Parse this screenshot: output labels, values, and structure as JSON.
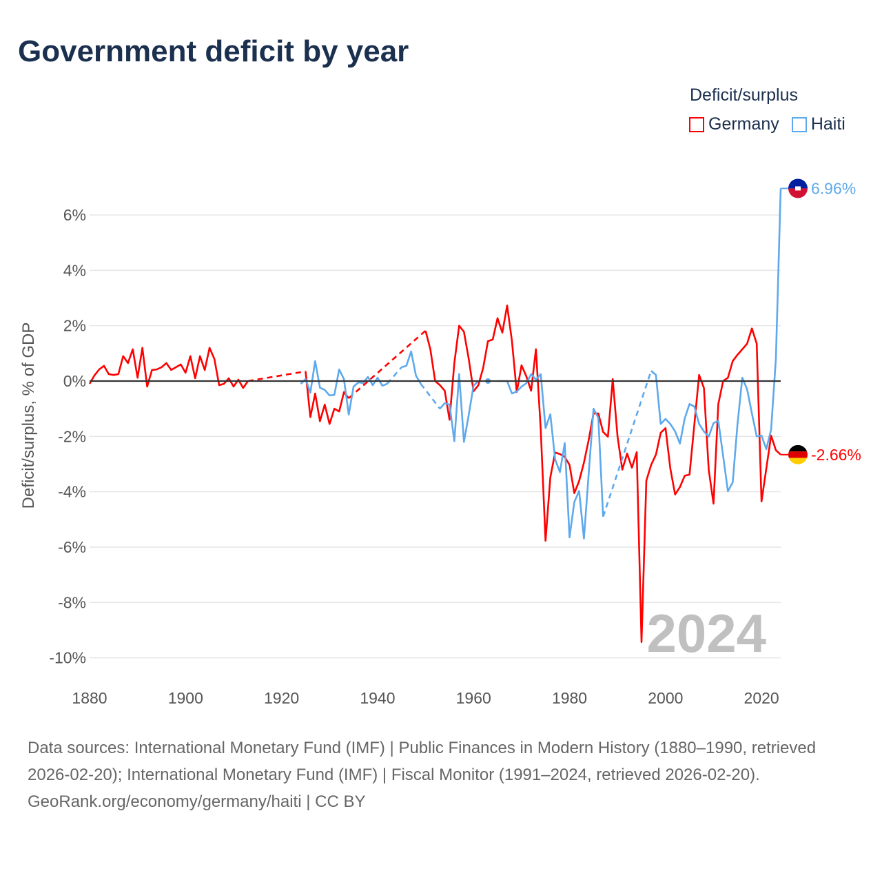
{
  "title": "Government deficit by year",
  "legend": {
    "title": "Deficit/surplus",
    "items": [
      {
        "label": "Germany",
        "color": "#ff0000"
      },
      {
        "label": "Haiti",
        "color": "#5ea9ec"
      }
    ]
  },
  "footer": {
    "sources": "Data sources: International Monetary Fund (IMF) | Public Finances in Modern History (1880–1990, retrieved 2026-02-20); International Monetary Fund (IMF) | Fiscal Monitor (1991–2024, retrieved 2026-02-20).",
    "credit": "GeoRank.org/economy/germany/haiti | CC BY"
  },
  "chart_data": {
    "type": "line",
    "title": "Government deficit by year",
    "xlabel": "",
    "ylabel": "Deficit/surplus, % of GDP",
    "xlim": [
      1880,
      2024
    ],
    "ylim": [
      -10,
      7
    ],
    "x_ticks": [
      1880,
      1900,
      1920,
      1940,
      1960,
      1980,
      2000,
      2020
    ],
    "y_ticks": [
      6,
      4,
      2,
      0,
      -2,
      -4,
      -6,
      -8,
      -10
    ],
    "y_tick_labels": [
      "6%",
      "4%",
      "2%",
      "0%",
      "-2%",
      "-4%",
      "-6%",
      "-8%",
      "-10%"
    ],
    "grid": true,
    "legend_position": "top-right",
    "current_year_label": "2024",
    "series": [
      {
        "name": "Germany",
        "color": "#ff0000",
        "end_label": "-2.66%",
        "dashed_gaps": [
          [
            1913,
            1925
          ],
          [
            1934,
            1950
          ]
        ],
        "points": [
          [
            1880,
            -0.1
          ],
          [
            1881,
            0.2
          ],
          [
            1882,
            0.42
          ],
          [
            1883,
            0.55
          ],
          [
            1884,
            0.25
          ],
          [
            1885,
            0.22
          ],
          [
            1886,
            0.25
          ],
          [
            1887,
            0.9
          ],
          [
            1888,
            0.65
          ],
          [
            1889,
            1.15
          ],
          [
            1890,
            0.12
          ],
          [
            1891,
            1.2
          ],
          [
            1892,
            -0.2
          ],
          [
            1893,
            0.4
          ],
          [
            1894,
            0.42
          ],
          [
            1895,
            0.5
          ],
          [
            1896,
            0.65
          ],
          [
            1897,
            0.4
          ],
          [
            1898,
            0.5
          ],
          [
            1899,
            0.6
          ],
          [
            1900,
            0.3
          ],
          [
            1901,
            0.9
          ],
          [
            1902,
            0.1
          ],
          [
            1903,
            0.9
          ],
          [
            1904,
            0.4
          ],
          [
            1905,
            1.2
          ],
          [
            1906,
            0.8
          ],
          [
            1907,
            -0.15
          ],
          [
            1908,
            -0.1
          ],
          [
            1909,
            0.1
          ],
          [
            1910,
            -0.2
          ],
          [
            1911,
            0.05
          ],
          [
            1912,
            -0.25
          ],
          [
            1913,
            0.0
          ],
          [
            1925,
            0.35
          ],
          [
            1926,
            -1.3
          ],
          [
            1927,
            -0.45
          ],
          [
            1928,
            -1.45
          ],
          [
            1929,
            -0.85
          ],
          [
            1930,
            -1.55
          ],
          [
            1931,
            -1.0
          ],
          [
            1932,
            -1.1
          ],
          [
            1933,
            -0.4
          ],
          [
            1934,
            -0.62
          ],
          [
            1950,
            1.82
          ],
          [
            1951,
            1.15
          ],
          [
            1952,
            0.0
          ],
          [
            1953,
            -0.15
          ],
          [
            1954,
            -0.35
          ],
          [
            1955,
            -1.4
          ],
          [
            1956,
            0.65
          ],
          [
            1957,
            2.0
          ],
          [
            1958,
            1.78
          ],
          [
            1959,
            0.8
          ],
          [
            1960,
            -0.37
          ],
          [
            1961,
            -0.15
          ],
          [
            1962,
            0.47
          ],
          [
            1963,
            1.44
          ],
          [
            1964,
            1.5
          ],
          [
            1965,
            2.27
          ],
          [
            1966,
            1.75
          ],
          [
            1967,
            2.73
          ],
          [
            1968,
            1.45
          ],
          [
            1969,
            -0.4
          ],
          [
            1970,
            0.57
          ],
          [
            1971,
            0.17
          ],
          [
            1972,
            -0.35
          ],
          [
            1973,
            1.15
          ],
          [
            1974,
            -1.75
          ],
          [
            1975,
            -5.77
          ],
          [
            1976,
            -3.48
          ],
          [
            1977,
            -2.58
          ],
          [
            1978,
            -2.64
          ],
          [
            1979,
            -2.74
          ],
          [
            1980,
            -3.03
          ],
          [
            1981,
            -4.05
          ],
          [
            1982,
            -3.61
          ],
          [
            1983,
            -2.95
          ],
          [
            1984,
            -2.12
          ],
          [
            1985,
            -1.17
          ],
          [
            1986,
            -1.17
          ],
          [
            1987,
            -1.84
          ],
          [
            1988,
            -2.01
          ],
          [
            1989,
            0.07
          ],
          [
            1990,
            -2.0
          ],
          [
            1991,
            -3.2
          ],
          [
            1992,
            -2.62
          ],
          [
            1993,
            -3.13
          ],
          [
            1994,
            -2.57
          ],
          [
            1995,
            -9.43
          ],
          [
            1996,
            -3.6
          ],
          [
            1997,
            -3.03
          ],
          [
            1998,
            -2.66
          ],
          [
            1999,
            -1.87
          ],
          [
            2000,
            -1.7
          ],
          [
            2001,
            -3.16
          ],
          [
            2002,
            -4.1
          ],
          [
            2003,
            -3.83
          ],
          [
            2004,
            -3.42
          ],
          [
            2005,
            -3.38
          ],
          [
            2006,
            -1.58
          ],
          [
            2007,
            0.22
          ],
          [
            2008,
            -0.25
          ],
          [
            2009,
            -3.2
          ],
          [
            2010,
            -4.43
          ],
          [
            2011,
            -0.83
          ],
          [
            2012,
            0.0
          ],
          [
            2013,
            0.12
          ],
          [
            2014,
            0.72
          ],
          [
            2015,
            0.95
          ],
          [
            2016,
            1.15
          ],
          [
            2017,
            1.35
          ],
          [
            2018,
            1.9
          ],
          [
            2019,
            1.35
          ],
          [
            2020,
            -4.35
          ],
          [
            2021,
            -3.16
          ],
          [
            2022,
            -1.97
          ],
          [
            2023,
            -2.5
          ],
          [
            2024,
            -2.66
          ]
        ]
      },
      {
        "name": "Haiti",
        "color": "#5ea9ec",
        "end_label": "6.96%",
        "dashed_gaps": [
          [
            1942,
            1945
          ],
          [
            1949,
            1953
          ],
          [
            1987,
            1997
          ]
        ],
        "points": [
          [
            1924,
            -0.1
          ],
          [
            1925,
            0.07
          ],
          [
            1926,
            -0.42
          ],
          [
            1927,
            0.72
          ],
          [
            1928,
            -0.24
          ],
          [
            1929,
            -0.32
          ],
          [
            1930,
            -0.52
          ],
          [
            1931,
            -0.5
          ],
          [
            1932,
            0.42
          ],
          [
            1933,
            0.07
          ],
          [
            1934,
            -1.21
          ],
          [
            1935,
            -0.2
          ],
          [
            1936,
            -0.05
          ],
          [
            1937,
            -0.07
          ],
          [
            1938,
            0.15
          ],
          [
            1939,
            -0.15
          ],
          [
            1940,
            0.12
          ],
          [
            1941,
            -0.17
          ],
          [
            1942,
            -0.1
          ],
          [
            1945,
            0.5
          ],
          [
            1946,
            0.55
          ],
          [
            1947,
            1.07
          ],
          [
            1948,
            0.2
          ],
          [
            1949,
            -0.1
          ],
          [
            1953,
            -1.0
          ],
          [
            1954,
            -0.8
          ],
          [
            1955,
            -0.85
          ],
          [
            1956,
            -2.17
          ],
          [
            1957,
            0.25
          ],
          [
            1958,
            -2.2
          ],
          [
            1959,
            -1.22
          ],
          [
            1960,
            -0.17
          ],
          [
            1961,
            0.0
          ],
          [
            1963,
            0.0
          ],
          [
            1965,
            0.0
          ],
          [
            1966,
            0.0
          ],
          [
            1967,
            0.0
          ],
          [
            1968,
            -0.45
          ],
          [
            1969,
            -0.38
          ],
          [
            1970,
            -0.2
          ],
          [
            1971,
            -0.08
          ],
          [
            1972,
            0.25
          ],
          [
            1973,
            0.05
          ],
          [
            1974,
            0.25
          ],
          [
            1975,
            -1.7
          ],
          [
            1976,
            -1.2
          ],
          [
            1977,
            -2.83
          ],
          [
            1978,
            -3.29
          ],
          [
            1979,
            -2.24
          ],
          [
            1980,
            -5.65
          ],
          [
            1981,
            -4.37
          ],
          [
            1982,
            -3.97
          ],
          [
            1983,
            -5.69
          ],
          [
            1984,
            -3.33
          ],
          [
            1985,
            -1.0
          ],
          [
            1986,
            -1.33
          ],
          [
            1987,
            -4.9
          ],
          [
            1997,
            0.37
          ],
          [
            1998,
            0.22
          ],
          [
            1999,
            -1.55
          ],
          [
            2000,
            -1.37
          ],
          [
            2001,
            -1.55
          ],
          [
            2002,
            -1.82
          ],
          [
            2003,
            -2.26
          ],
          [
            2004,
            -1.35
          ],
          [
            2005,
            -0.83
          ],
          [
            2006,
            -0.92
          ],
          [
            2007,
            -1.55
          ],
          [
            2008,
            -1.82
          ],
          [
            2009,
            -2.01
          ],
          [
            2010,
            -1.52
          ],
          [
            2011,
            -1.44
          ],
          [
            2012,
            -2.7
          ],
          [
            2013,
            -3.98
          ],
          [
            2014,
            -3.66
          ],
          [
            2015,
            -1.55
          ],
          [
            2016,
            0.12
          ],
          [
            2017,
            -0.3
          ],
          [
            2018,
            -1.17
          ],
          [
            2019,
            -2.0
          ],
          [
            2020,
            -1.97
          ],
          [
            2021,
            -2.46
          ],
          [
            2022,
            -1.75
          ],
          [
            2023,
            0.82
          ],
          [
            2024,
            6.96
          ]
        ]
      }
    ]
  }
}
